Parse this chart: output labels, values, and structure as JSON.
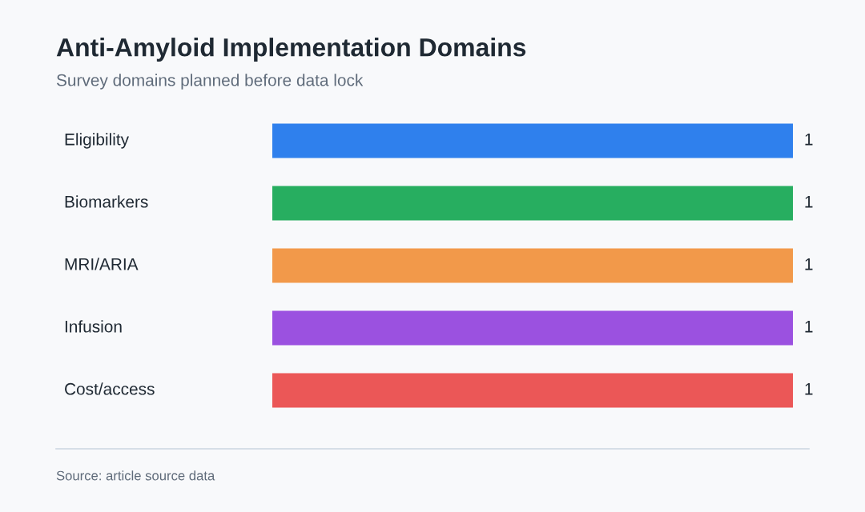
{
  "chart_data": {
    "type": "bar",
    "orientation": "horizontal",
    "title": "Anti-Amyloid Implementation Domains",
    "subtitle": "Survey domains planned before data lock",
    "categories": [
      "Eligibility",
      "Biomarkers",
      "MRI/ARIA",
      "Infusion",
      "Cost/access"
    ],
    "values": [
      1,
      1,
      1,
      1,
      1
    ],
    "colors": [
      "#2f80ed",
      "#27ae60",
      "#f2994a",
      "#9b51e0",
      "#eb5757"
    ],
    "data_labels": true,
    "annotations": [
      "Source: article source data"
    ]
  }
}
